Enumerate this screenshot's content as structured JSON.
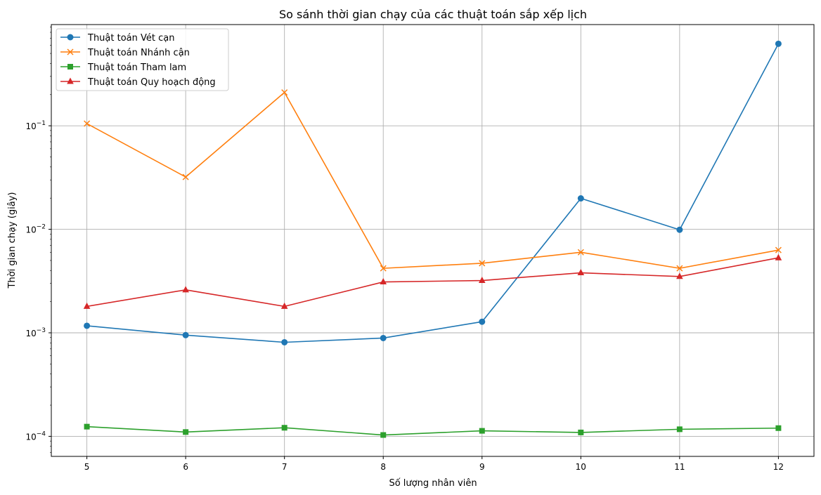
{
  "chart_data": {
    "type": "line",
    "title": "So sánh thời gian chạy của các thuật toán sắp xếp lịch",
    "xlabel": "Số lượng nhân viên",
    "ylabel": "Thời gian chạy (giây)",
    "yscale": "log",
    "grid": true,
    "legend_position": "top-left",
    "x": [
      5,
      6,
      7,
      8,
      9,
      10,
      11,
      12
    ],
    "xlim": [
      4.64,
      12.36
    ],
    "ylim": [
      6.4e-05,
      0.95
    ],
    "yticks": [
      {
        "value": 0.0001,
        "base": "10",
        "exp": "−4"
      },
      {
        "value": 0.001,
        "base": "10",
        "exp": "−3"
      },
      {
        "value": 0.01,
        "base": "10",
        "exp": "−2"
      },
      {
        "value": 0.1,
        "base": "10",
        "exp": "−1"
      }
    ],
    "series": [
      {
        "name": "Thuật toán Vét cạn",
        "color": "#1f77b4",
        "marker": "circle",
        "values": [
          0.00117,
          0.00095,
          0.00081,
          0.00089,
          0.00128,
          0.0199,
          0.0099,
          0.62
        ]
      },
      {
        "name": "Thuật toán Nhánh cận",
        "color": "#ff7f0e",
        "marker": "x",
        "values": [
          0.105,
          0.032,
          0.21,
          0.0042,
          0.0047,
          0.006,
          0.0042,
          0.0063
        ]
      },
      {
        "name": "Thuật toán Tham lam",
        "color": "#2ca02c",
        "marker": "square",
        "values": [
          0.000124,
          0.00011,
          0.000121,
          0.000103,
          0.000113,
          0.000109,
          0.000117,
          0.00012
        ]
      },
      {
        "name": "Thuật toán Quy hoạch động",
        "color": "#d62728",
        "marker": "triangle",
        "values": [
          0.0018,
          0.0026,
          0.0018,
          0.0031,
          0.0032,
          0.0038,
          0.0035,
          0.0053
        ]
      }
    ]
  }
}
